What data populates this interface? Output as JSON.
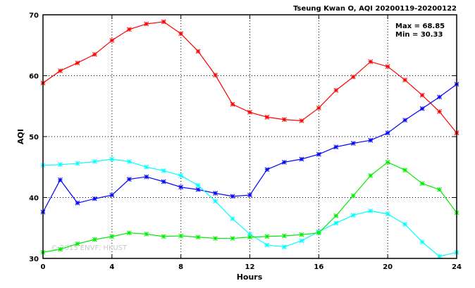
{
  "chart_data": {
    "type": "line",
    "title": "Tseung Kwan O, AQI 20200119-20200122",
    "xlabel": "Hours",
    "ylabel": "AQI",
    "xlim": [
      0,
      24
    ],
    "ylim": [
      30,
      70
    ],
    "xticks": [
      0,
      4,
      8,
      12,
      16,
      20,
      24
    ],
    "yticks": [
      30,
      40,
      50,
      60,
      70
    ],
    "grid": true,
    "annotation": {
      "max": "Max = 68.85",
      "min": "Min = 30.33"
    },
    "watermark": "© 2015 ENVF, HKUST",
    "x": [
      0,
      1,
      2,
      3,
      4,
      5,
      6,
      7,
      8,
      9,
      10,
      11,
      12,
      13,
      14,
      15,
      16,
      17,
      18,
      19,
      20,
      21,
      22,
      23,
      24
    ],
    "series": [
      {
        "color": "#ff0000",
        "values": [
          58.8,
          60.8,
          62.1,
          63.5,
          65.8,
          67.6,
          68.5,
          68.85,
          66.9,
          64.0,
          60.1,
          55.3,
          54.0,
          53.2,
          52.8,
          52.6,
          54.7,
          57.6,
          59.8,
          62.3,
          61.5,
          59.3,
          56.8,
          54.1,
          50.6
        ]
      },
      {
        "color": "#0000ff",
        "values": [
          37.6,
          42.9,
          39.1,
          39.8,
          40.4,
          43.0,
          43.4,
          42.6,
          41.7,
          41.3,
          40.7,
          40.2,
          40.4,
          44.6,
          45.8,
          46.3,
          47.1,
          48.3,
          48.9,
          49.4,
          50.6,
          52.7,
          54.6,
          56.5,
          58.6
        ]
      },
      {
        "color": "#00ffff",
        "values": [
          45.3,
          45.4,
          45.6,
          45.9,
          46.3,
          45.9,
          45.0,
          44.4,
          43.6,
          42.0,
          39.4,
          36.5,
          34.0,
          32.2,
          31.9,
          32.9,
          34.4,
          35.8,
          37.1,
          37.8,
          37.3,
          35.6,
          32.7,
          30.33,
          31.0
        ]
      },
      {
        "color": "#00ee00",
        "values": [
          31.0,
          31.5,
          32.4,
          33.1,
          33.6,
          34.2,
          34.0,
          33.6,
          33.7,
          33.5,
          33.3,
          33.3,
          33.5,
          33.6,
          33.7,
          33.9,
          34.2,
          37.0,
          40.3,
          43.6,
          45.8,
          44.5,
          42.3,
          41.3,
          37.5
        ]
      }
    ]
  }
}
